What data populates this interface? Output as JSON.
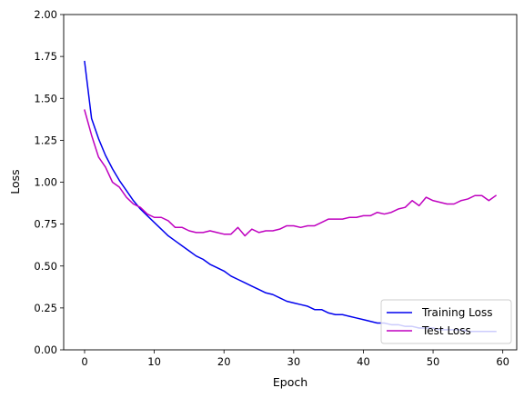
{
  "chart_data": {
    "type": "line",
    "xlabel": "Epoch",
    "ylabel": "Loss",
    "xlim": [
      -3.0,
      62.0
    ],
    "ylim": [
      0,
      2.0
    ],
    "xticks": [
      0,
      10,
      20,
      30,
      40,
      50,
      60
    ],
    "yticks": [
      0.0,
      0.25,
      0.5,
      0.75,
      1.0,
      1.25,
      1.5,
      1.75,
      2.0
    ],
    "ytick_labels": [
      "0.00",
      "0.25",
      "0.50",
      "0.75",
      "1.00",
      "1.25",
      "1.50",
      "1.75",
      "2.00"
    ],
    "grid": false,
    "legend_position": "lower-right",
    "series": [
      {
        "name": "Training Loss",
        "color": "#0000ee",
        "x": [
          0,
          1,
          2,
          3,
          4,
          5,
          6,
          7,
          8,
          9,
          10,
          11,
          12,
          13,
          14,
          15,
          16,
          17,
          18,
          19,
          20,
          21,
          22,
          23,
          24,
          25,
          26,
          27,
          28,
          29,
          30,
          31,
          32,
          33,
          34,
          35,
          36,
          37,
          38,
          39,
          40,
          41,
          42,
          43,
          44,
          45,
          46,
          47,
          48,
          49,
          50,
          51,
          52,
          53,
          54,
          55,
          56,
          57,
          58,
          59
        ],
        "values": [
          1.72,
          1.38,
          1.26,
          1.16,
          1.08,
          1.01,
          0.95,
          0.89,
          0.84,
          0.8,
          0.76,
          0.72,
          0.68,
          0.65,
          0.62,
          0.59,
          0.56,
          0.54,
          0.51,
          0.49,
          0.47,
          0.44,
          0.42,
          0.4,
          0.38,
          0.36,
          0.34,
          0.33,
          0.31,
          0.29,
          0.28,
          0.27,
          0.26,
          0.24,
          0.24,
          0.22,
          0.21,
          0.21,
          0.2,
          0.19,
          0.18,
          0.17,
          0.16,
          0.16,
          0.15,
          0.15,
          0.14,
          0.14,
          0.13,
          0.13,
          0.13,
          0.12,
          0.12,
          0.12,
          0.12,
          0.11,
          0.11,
          0.11,
          0.11,
          0.11
        ]
      },
      {
        "name": "Test Loss",
        "color": "#bf00bf",
        "x": [
          0,
          1,
          2,
          3,
          4,
          5,
          6,
          7,
          8,
          9,
          10,
          11,
          12,
          13,
          14,
          15,
          16,
          17,
          18,
          19,
          20,
          21,
          22,
          23,
          24,
          25,
          26,
          27,
          28,
          29,
          30,
          31,
          32,
          33,
          34,
          35,
          36,
          37,
          38,
          39,
          40,
          41,
          42,
          43,
          44,
          45,
          46,
          47,
          48,
          49,
          50,
          51,
          52,
          53,
          54,
          55,
          56,
          57,
          58,
          59
        ],
        "values": [
          1.43,
          1.28,
          1.15,
          1.09,
          1.0,
          0.97,
          0.91,
          0.87,
          0.85,
          0.81,
          0.79,
          0.79,
          0.77,
          0.73,
          0.73,
          0.71,
          0.7,
          0.7,
          0.71,
          0.7,
          0.69,
          0.69,
          0.73,
          0.68,
          0.72,
          0.7,
          0.71,
          0.71,
          0.72,
          0.74,
          0.74,
          0.73,
          0.74,
          0.74,
          0.76,
          0.78,
          0.78,
          0.78,
          0.79,
          0.79,
          0.8,
          0.8,
          0.82,
          0.81,
          0.82,
          0.84,
          0.85,
          0.89,
          0.86,
          0.91,
          0.89,
          0.88,
          0.87,
          0.87,
          0.89,
          0.9,
          0.92,
          0.92,
          0.89,
          0.92
        ]
      }
    ]
  }
}
